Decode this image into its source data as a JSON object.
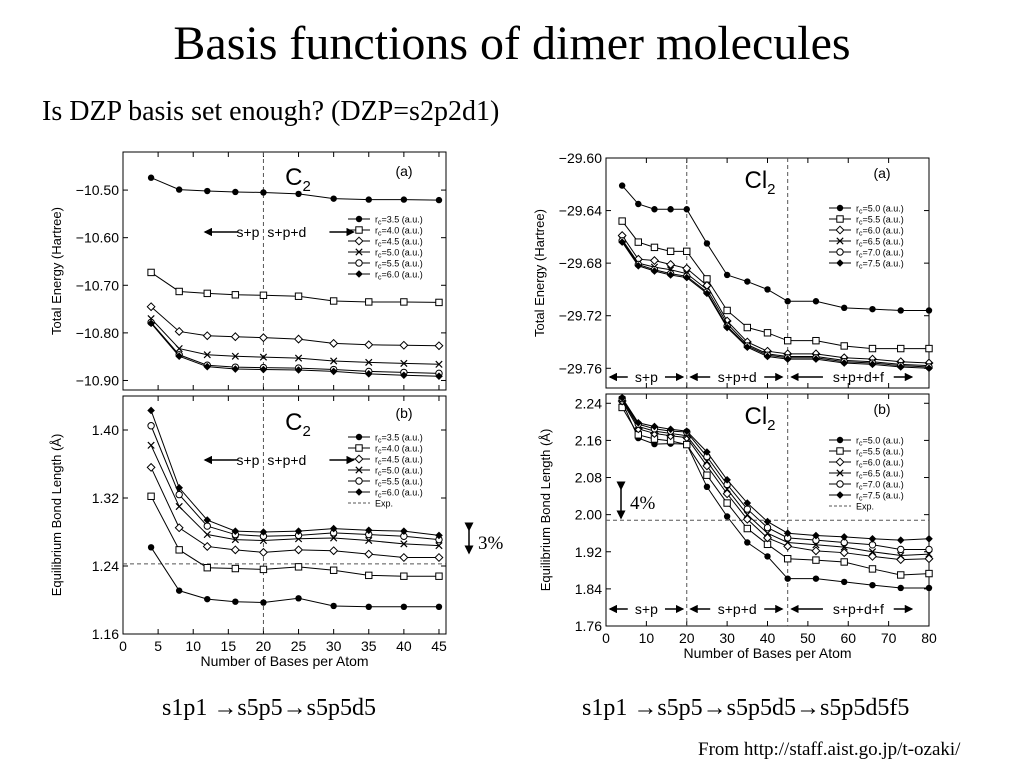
{
  "slide": {
    "title": "Basis functions of dimer molecules",
    "subtitle": "Is DZP basis set enough? (DZP=s2p2d1)",
    "left_caption": "s1p1 →s5p5→s5p5d5",
    "right_caption": "s1p1 →s5p5→s5p5d5→s5p5d5f5",
    "source": "From http://staff.aist.go.jp/t-ozaki/",
    "note_3pct": "3%",
    "note_4pct": "4%"
  },
  "chart_data": [
    {
      "type": "line",
      "molecule": "C2",
      "panel": "(a)",
      "ylabel": "Total Energy (Hartree)",
      "xlim": [
        0,
        46
      ],
      "ylim": [
        -10.92,
        -10.42
      ],
      "yticks": [
        -10.9,
        -10.8,
        -10.7,
        -10.6,
        -10.5
      ],
      "ytick_labels": [
        "−10.90",
        "−10.80",
        "−10.70",
        "−10.60",
        "−10.50"
      ],
      "x": [
        4,
        8,
        12,
        16,
        20,
        25,
        30,
        35,
        40,
        45
      ],
      "series": [
        {
          "name": "r<sub>c</sub>=3.5 (a.u.)",
          "values": [
            -10.474,
            -10.499,
            -10.502,
            -10.504,
            -10.505,
            -10.508,
            -10.518,
            -10.52,
            -10.52,
            -10.521
          ]
        },
        {
          "name": "r<sub>c</sub>=4.0 (a.u.)",
          "values": [
            -10.673,
            -10.713,
            -10.717,
            -10.72,
            -10.721,
            -10.723,
            -10.733,
            -10.735,
            -10.735,
            -10.736
          ]
        },
        {
          "name": "r<sub>c</sub>=4.5 (a.u.)",
          "values": [
            -10.745,
            -10.797,
            -10.806,
            -10.808,
            -10.81,
            -10.813,
            -10.822,
            -10.825,
            -10.826,
            -10.827
          ]
        },
        {
          "name": "r<sub>c</sub>=5.0 (a.u.)",
          "values": [
            -10.77,
            -10.833,
            -10.846,
            -10.849,
            -10.851,
            -10.853,
            -10.859,
            -10.862,
            -10.864,
            -10.866
          ]
        },
        {
          "name": "r<sub>c</sub>=5.5 (a.u.)",
          "values": [
            -10.778,
            -10.846,
            -10.868,
            -10.872,
            -10.873,
            -10.874,
            -10.877,
            -10.881,
            -10.883,
            -10.885
          ]
        },
        {
          "name": "r<sub>c</sub>=6.0 (a.u.)",
          "values": [
            -10.78,
            -10.849,
            -10.871,
            -10.876,
            -10.877,
            -10.878,
            -10.881,
            -10.886,
            -10.889,
            -10.891
          ]
        }
      ],
      "vlines": [
        20
      ],
      "region_labels": [
        "s+p",
        "s+p+d"
      ]
    },
    {
      "type": "line",
      "molecule": "C2",
      "panel": "(b)",
      "xlabel": "Number of Bases per Atom",
      "ylabel": "Equilibrium Bond Length (Å)",
      "xlim": [
        0,
        46
      ],
      "ylim": [
        1.16,
        1.44
      ],
      "xticks": [
        0,
        5,
        10,
        15,
        20,
        25,
        30,
        35,
        40,
        45
      ],
      "yticks": [
        1.16,
        1.24,
        1.32,
        1.4
      ],
      "x": [
        4,
        8,
        12,
        16,
        20,
        25,
        30,
        35,
        40,
        45
      ],
      "series": [
        {
          "name": "r<sub>c</sub>=3.5 (a.u.)",
          "values": [
            1.262,
            1.211,
            1.201,
            1.198,
            1.197,
            1.202,
            1.193,
            1.192,
            1.192,
            1.192
          ]
        },
        {
          "name": "r<sub>c</sub>=4.0 (a.u.)",
          "values": [
            1.322,
            1.259,
            1.238,
            1.237,
            1.236,
            1.239,
            1.235,
            1.229,
            1.228,
            1.228
          ]
        },
        {
          "name": "r<sub>c</sub>=4.5 (a.u.)",
          "values": [
            1.356,
            1.285,
            1.263,
            1.259,
            1.256,
            1.259,
            1.258,
            1.254,
            1.25,
            1.25
          ]
        },
        {
          "name": "r<sub>c</sub>=5.0 (a.u.)",
          "values": [
            1.382,
            1.31,
            1.277,
            1.271,
            1.27,
            1.272,
            1.273,
            1.27,
            1.266,
            1.264
          ]
        },
        {
          "name": "r<sub>c</sub>=5.5 (a.u.)",
          "values": [
            1.405,
            1.324,
            1.287,
            1.277,
            1.275,
            1.276,
            1.279,
            1.277,
            1.275,
            1.271
          ]
        },
        {
          "name": "r<sub>c</sub>=6.0 (a.u.)",
          "values": [
            1.423,
            1.332,
            1.294,
            1.281,
            1.28,
            1.281,
            1.284,
            1.282,
            1.281,
            1.276
          ]
        }
      ],
      "reference": {
        "name": "Exp.",
        "value": 1.2425
      },
      "vlines": [
        20
      ],
      "region_labels": [
        "s+p",
        "s+p+d"
      ]
    },
    {
      "type": "line",
      "molecule": "Cl2",
      "panel": "(a)",
      "ylabel": "Total Energy (Hartree)",
      "xlim": [
        0,
        80
      ],
      "ylim": [
        -29.775,
        -29.6
      ],
      "yticks": [
        -29.76,
        -29.72,
        -29.68,
        -29.64,
        -29.6
      ],
      "ytick_labels": [
        "−29.76",
        "−29.72",
        "−29.68",
        "−29.64",
        "−29.60"
      ],
      "x": [
        4,
        8,
        12,
        16,
        20,
        25,
        30,
        35,
        40,
        45,
        52,
        59,
        66,
        73,
        80
      ],
      "series": [
        {
          "name": "r<sub>c</sub>=5.0 (a.u.)",
          "values": [
            -29.621,
            -29.635,
            -29.639,
            -29.639,
            -29.639,
            -29.665,
            -29.689,
            -29.694,
            -29.7,
            -29.709,
            -29.709,
            -29.714,
            -29.715,
            -29.716,
            -29.716
          ]
        },
        {
          "name": "r<sub>c</sub>=5.5 (a.u.)",
          "values": [
            -29.648,
            -29.664,
            -29.668,
            -29.671,
            -29.671,
            -29.692,
            -29.716,
            -29.729,
            -29.733,
            -29.739,
            -29.739,
            -29.743,
            -29.745,
            -29.745,
            -29.745
          ]
        },
        {
          "name": "r<sub>c</sub>=6.0 (a.u.)",
          "values": [
            -29.659,
            -29.677,
            -29.678,
            -29.681,
            -29.684,
            -29.697,
            -29.724,
            -29.74,
            -29.747,
            -29.749,
            -29.749,
            -29.752,
            -29.753,
            -29.755,
            -29.756
          ]
        },
        {
          "name": "r<sub>c</sub>=6.5 (a.u.)",
          "values": [
            -29.662,
            -29.68,
            -29.683,
            -29.685,
            -29.688,
            -29.7,
            -29.726,
            -29.742,
            -29.749,
            -29.751,
            -29.751,
            -29.754,
            -29.755,
            -29.757,
            -29.758
          ]
        },
        {
          "name": "r<sub>c</sub>=7.0 (a.u.)",
          "values": [
            -29.663,
            -29.681,
            -29.685,
            -29.688,
            -29.69,
            -29.702,
            -29.728,
            -29.743,
            -29.75,
            -29.752,
            -29.752,
            -29.755,
            -29.756,
            -29.758,
            -29.759
          ]
        },
        {
          "name": "r<sub>c</sub>=7.5 (a.u.)",
          "values": [
            -29.664,
            -29.682,
            -29.686,
            -29.689,
            -29.691,
            -29.703,
            -29.729,
            -29.744,
            -29.751,
            -29.753,
            -29.753,
            -29.756,
            -29.757,
            -29.759,
            -29.76
          ]
        }
      ],
      "vlines": [
        20,
        45
      ],
      "region_labels": [
        "s+p",
        "s+p+d",
        "s+p+d+f"
      ]
    },
    {
      "type": "line",
      "molecule": "Cl2",
      "panel": "(b)",
      "xlabel": "Number of Bases per Atom",
      "ylabel": "Equilibrium Bond Length (Å)",
      "xlim": [
        0,
        80
      ],
      "ylim": [
        1.76,
        2.26
      ],
      "xticks": [
        0,
        10,
        20,
        30,
        40,
        50,
        60,
        70,
        80
      ],
      "yticks": [
        1.76,
        1.84,
        1.92,
        2.0,
        2.08,
        2.16,
        2.24
      ],
      "x": [
        4,
        8,
        12,
        16,
        20,
        25,
        30,
        35,
        40,
        45,
        52,
        59,
        66,
        73,
        80
      ],
      "series": [
        {
          "name": "r<sub>c</sub>=5.0 (a.u.)",
          "values": [
            2.243,
            2.165,
            2.152,
            2.153,
            2.152,
            2.06,
            1.996,
            1.94,
            1.91,
            1.862,
            1.862,
            1.855,
            1.848,
            1.842,
            1.842
          ]
        },
        {
          "name": "r<sub>c</sub>=5.5 (a.u.)",
          "values": [
            2.231,
            2.172,
            2.163,
            2.159,
            2.151,
            2.085,
            2.025,
            1.97,
            1.936,
            1.905,
            1.902,
            1.898,
            1.883,
            1.87,
            1.873
          ]
        },
        {
          "name": "r<sub>c</sub>=6.0 (a.u.)",
          "values": [
            2.245,
            2.185,
            2.175,
            2.17,
            2.166,
            2.105,
            2.045,
            1.99,
            1.95,
            1.932,
            1.922,
            1.918,
            1.91,
            1.903,
            1.905
          ]
        },
        {
          "name": "r<sub>c</sub>=6.5 (a.u.)",
          "values": [
            2.248,
            2.19,
            2.18,
            2.175,
            2.17,
            2.115,
            2.055,
            2.0,
            1.96,
            1.94,
            1.935,
            1.93,
            1.92,
            1.912,
            1.915
          ]
        },
        {
          "name": "r<sub>c</sub>=7.0 (a.u.)",
          "values": [
            2.25,
            2.195,
            2.185,
            2.18,
            2.178,
            2.125,
            2.065,
            2.012,
            1.972,
            1.95,
            1.945,
            1.94,
            1.935,
            1.925,
            1.925
          ]
        },
        {
          "name": "r<sub>c</sub>=7.5 (a.u.)",
          "values": [
            2.252,
            2.198,
            2.19,
            2.184,
            2.18,
            2.135,
            2.075,
            2.025,
            1.985,
            1.96,
            1.955,
            1.952,
            1.948,
            1.945,
            1.948
          ]
        }
      ],
      "reference": {
        "name": "Exp.",
        "value": 1.988
      },
      "vlines": [
        20,
        45
      ],
      "region_labels": [
        "s+p",
        "s+p+d",
        "s+p+d+f"
      ]
    }
  ]
}
